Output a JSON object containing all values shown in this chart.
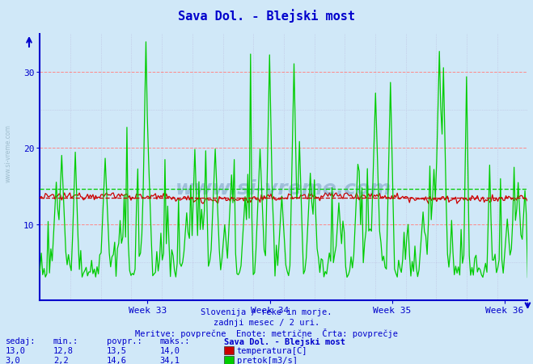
{
  "title": "Sava Dol. - Blejski most",
  "title_color": "#0000cc",
  "bg_color": "#d0e8f8",
  "plot_bg_color": "#d0e8f8",
  "grid_color_major": "#ff8888",
  "grid_color_minor": "#bbbbdd",
  "x_label_weeks": [
    "Week 33",
    "Week 34",
    "Week 35",
    "Week 36"
  ],
  "temp_color": "#cc0000",
  "flow_color": "#00cc00",
  "temp_avg": 13.5,
  "flow_avg": 14.6,
  "temp_min": 12.8,
  "temp_max": 14.0,
  "temp_now": 13.0,
  "flow_min": 2.2,
  "flow_max": 34.1,
  "flow_now": 3.0,
  "ymin": 0,
  "ymax": 35,
  "n_points": 360,
  "subtitle1": "Slovenija / reke in morje.",
  "subtitle2": "zadnji mesec / 2 uri.",
  "subtitle3": "Meritve: povprečne  Enote: metrične  Črta: povprečje",
  "footer_label1": "sedaj:",
  "footer_label2": "min.:",
  "footer_label3": "povpr.:",
  "footer_label4": "maks.:",
  "footer_bold": "Sava Dol. - Blejski most",
  "axis_color": "#0000cc",
  "tick_color": "#0000cc",
  "text_color": "#0000cc",
  "watermark": "www.si-vreme.com"
}
